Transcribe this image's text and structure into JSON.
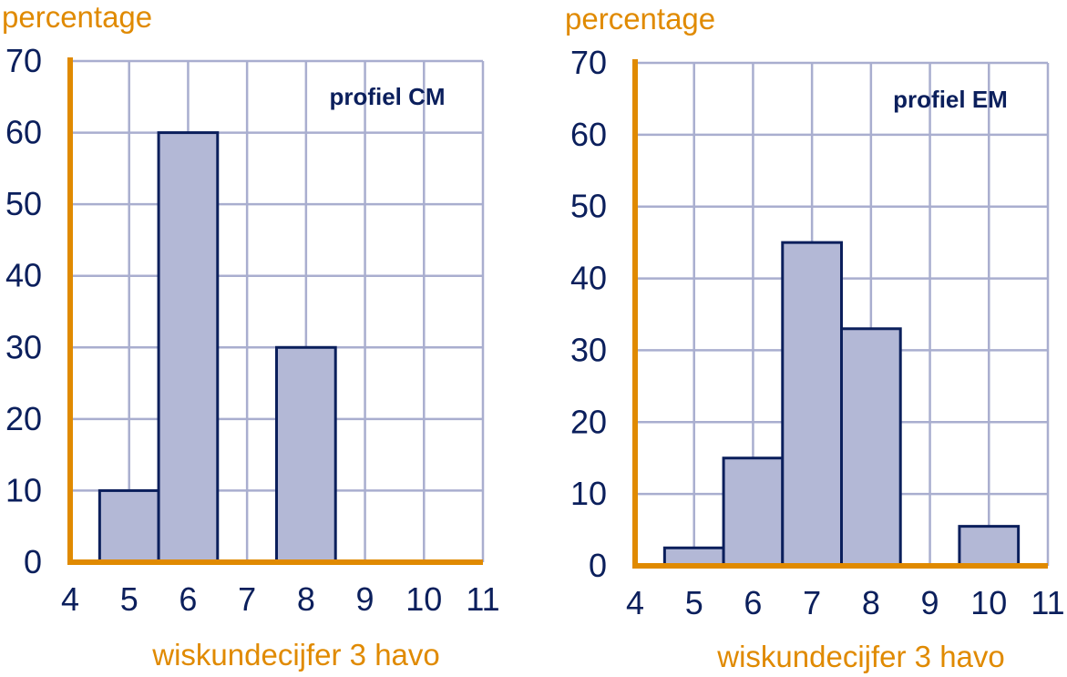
{
  "colors": {
    "axis": "#E08A00",
    "axis_text": "#E08A00",
    "grid": "#A9AECF",
    "bar_fill": "#B3B8D6",
    "bar_stroke": "#0B1F5C",
    "tick_text": "#0B1F5C",
    "title_text": "#0B1F5C"
  },
  "chart_data": [
    {
      "type": "bar",
      "title": "profiel CM",
      "xlabel": "wiskundecijfer 3 havo",
      "ylabel": "percentage",
      "xlim": [
        4,
        11
      ],
      "ylim": [
        0,
        70
      ],
      "x_ticks": [
        "4",
        "5",
        "6",
        "7",
        "8",
        "9",
        "10",
        "11"
      ],
      "y_ticks": [
        "0",
        "10",
        "20",
        "30",
        "40",
        "50",
        "60",
        "70"
      ],
      "grid": true,
      "categories": [
        "5",
        "6",
        "8"
      ],
      "values": [
        10,
        60,
        30
      ]
    },
    {
      "type": "bar",
      "title": "profiel EM",
      "xlabel": "wiskundecijfer 3 havo",
      "ylabel": "percentage",
      "xlim": [
        4,
        11
      ],
      "ylim": [
        0,
        70
      ],
      "x_ticks": [
        "4",
        "5",
        "6",
        "7",
        "8",
        "9",
        "10",
        "11"
      ],
      "y_ticks": [
        "0",
        "10",
        "20",
        "30",
        "40",
        "50",
        "60",
        "70"
      ],
      "grid": true,
      "categories": [
        "5",
        "6",
        "7",
        "8",
        "10"
      ],
      "values": [
        2.5,
        15,
        45,
        33,
        5.5
      ]
    }
  ]
}
